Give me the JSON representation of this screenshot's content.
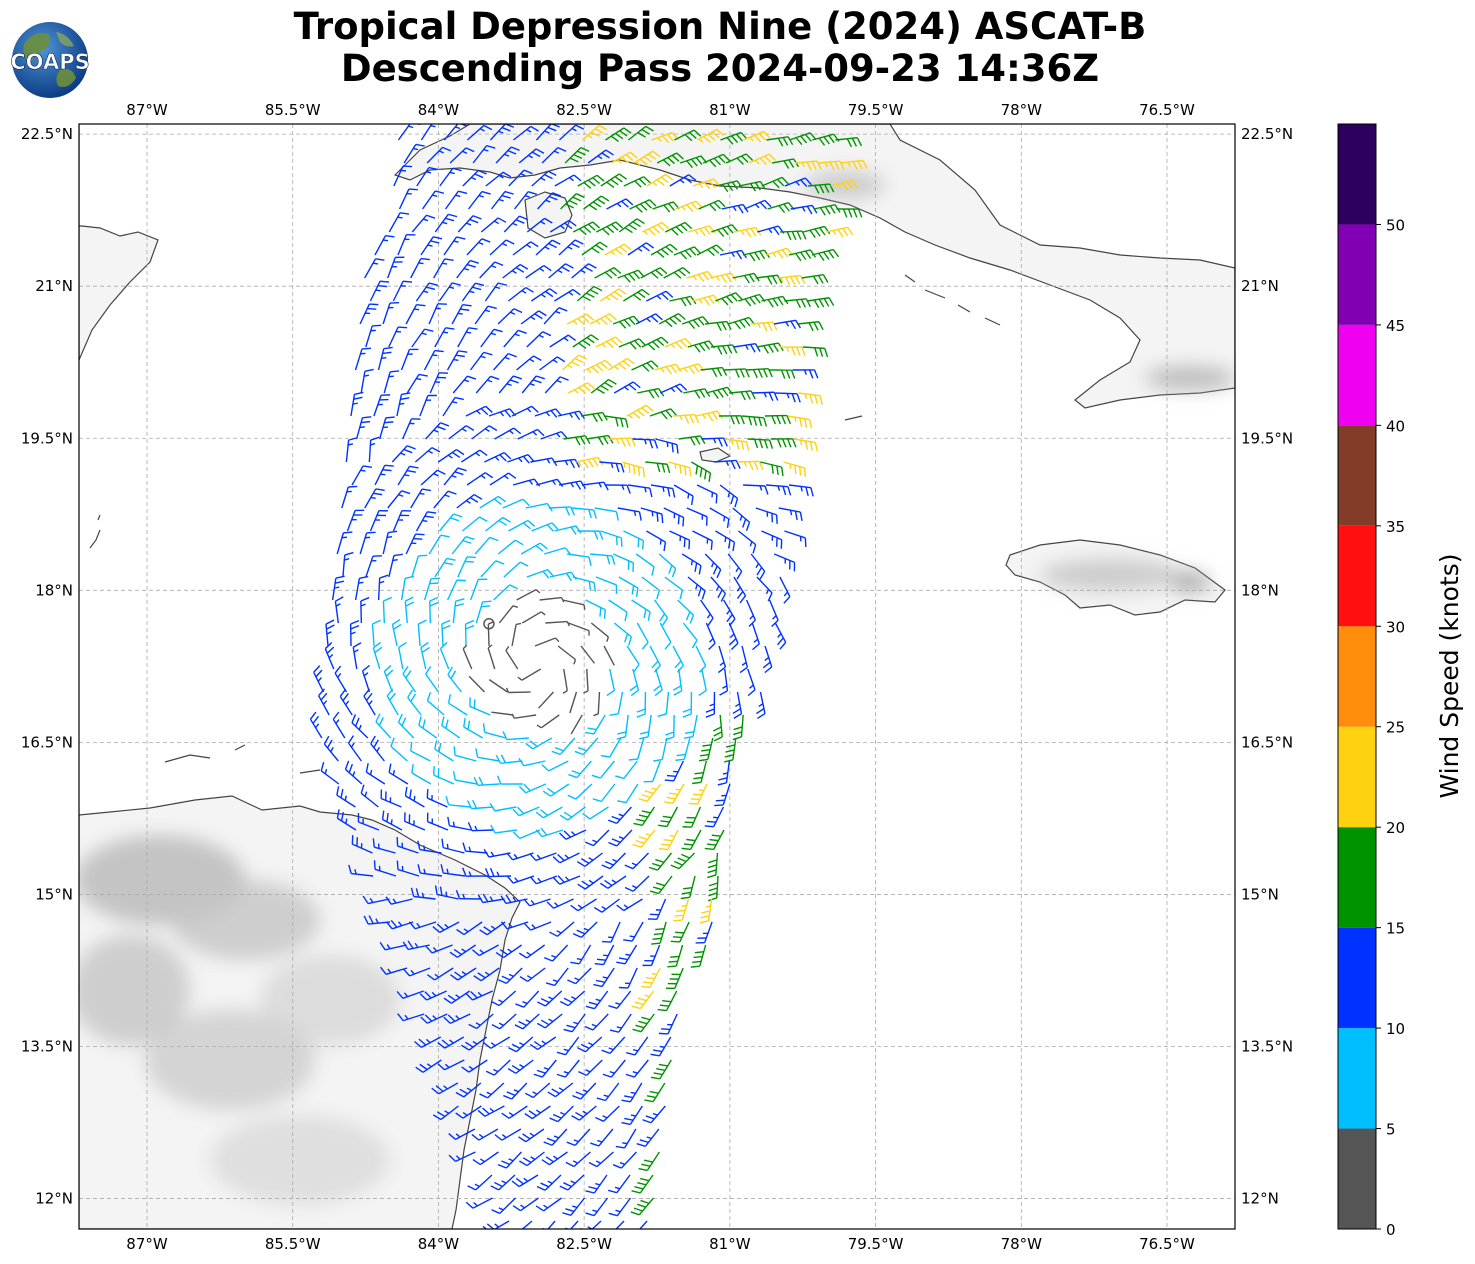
{
  "title": {
    "line1": "Tropical Depression Nine (2024) ASCAT-B",
    "line2": "Descending Pass 2024-09-23 14:36Z"
  },
  "logo": {
    "text": "COAPS",
    "icon": "globe-logo-icon"
  },
  "map": {
    "lon_range": [
      -87.7,
      -75.8
    ],
    "lat_range": [
      11.7,
      22.6
    ],
    "lon_ticks": [
      {
        "value": -87.0,
        "label": "87°W"
      },
      {
        "value": -85.5,
        "label": "85.5°W"
      },
      {
        "value": -84.0,
        "label": "84°W"
      },
      {
        "value": -82.5,
        "label": "82.5°W"
      },
      {
        "value": -81.0,
        "label": "81°W"
      },
      {
        "value": -79.5,
        "label": "79.5°W"
      },
      {
        "value": -78.0,
        "label": "78°W"
      },
      {
        "value": -76.5,
        "label": "76.5°W"
      }
    ],
    "lat_ticks": [
      {
        "value": 22.5,
        "label": "22.5°N"
      },
      {
        "value": 21.0,
        "label": "21°N"
      },
      {
        "value": 19.5,
        "label": "19.5°N"
      },
      {
        "value": 18.0,
        "label": "18°N"
      },
      {
        "value": 16.5,
        "label": "16.5°N"
      },
      {
        "value": 15.0,
        "label": "15°N"
      },
      {
        "value": 13.5,
        "label": "13.5°N"
      },
      {
        "value": 12.0,
        "label": "12°N"
      }
    ],
    "grid": true,
    "storm_center": {
      "lon": -83.48,
      "lat": 17.67
    },
    "colors": {
      "land": "#f4f4f4",
      "coast": "#444444",
      "grid": "#aaaaaa"
    }
  },
  "colorbar": {
    "label": "Wind Speed (knots)",
    "ticks": [
      "0",
      "5",
      "10",
      "15",
      "20",
      "25",
      "30",
      "35",
      "40",
      "45",
      "50"
    ],
    "bins": [
      {
        "from": 0,
        "to": 5,
        "color": "#555555"
      },
      {
        "from": 5,
        "to": 10,
        "color": "#00bfff"
      },
      {
        "from": 10,
        "to": 15,
        "color": "#0032ff"
      },
      {
        "from": 15,
        "to": 20,
        "color": "#009300"
      },
      {
        "from": 20,
        "to": 25,
        "color": "#ffd20f"
      },
      {
        "from": 25,
        "to": 30,
        "color": "#ff8c0a"
      },
      {
        "from": 30,
        "to": 35,
        "color": "#ff0f0f"
      },
      {
        "from": 35,
        "to": 40,
        "color": "#823c28"
      },
      {
        "from": 40,
        "to": 45,
        "color": "#f000f0"
      },
      {
        "from": 45,
        "to": 50,
        "color": "#8200b4"
      },
      {
        "from": 50,
        "to": 55,
        "color": "#2d005f"
      }
    ]
  }
}
